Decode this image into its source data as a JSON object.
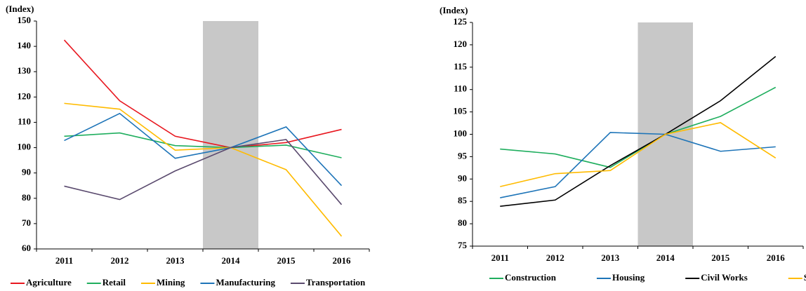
{
  "chart_data": [
    {
      "type": "line",
      "y_label": "(Index)",
      "categories": [
        "2011",
        "2012",
        "2013",
        "2014",
        "2015",
        "2016"
      ],
      "series": [
        {
          "name": "Agriculture",
          "color": "#e8171f",
          "values": [
            142.5,
            118.5,
            104.5,
            100,
            102,
            107.2
          ]
        },
        {
          "name": "Retail",
          "color": "#1fae5e",
          "values": [
            104.5,
            105.8,
            100.8,
            100,
            101,
            96
          ]
        },
        {
          "name": "Mining",
          "color": "#ffbb00",
          "values": [
            117.5,
            115.2,
            99,
            100,
            91.3,
            65
          ]
        },
        {
          "name": "Manufacturing",
          "color": "#1d74b8",
          "values": [
            102.8,
            113.5,
            95.8,
            100,
            108.2,
            85
          ]
        },
        {
          "name": "Transportation",
          "color": "#5a4a6e",
          "values": [
            84.8,
            79.5,
            90.8,
            100,
            103.2,
            77.5
          ]
        }
      ],
      "ylim": [
        60,
        150
      ],
      "yticks": [
        60,
        70,
        80,
        90,
        100,
        110,
        120,
        130,
        140,
        150
      ],
      "shade": {
        "category": "2014",
        "color": "#c8c8c8"
      }
    },
    {
      "type": "line",
      "y_label": "(Index)",
      "categories": [
        "2011",
        "2012",
        "2013",
        "2014",
        "2015",
        "2016"
      ],
      "series": [
        {
          "name": "Construction",
          "color": "#1fae5e",
          "values": [
            96.7,
            95.6,
            92.6,
            100,
            104,
            110.5
          ]
        },
        {
          "name": "Housing",
          "color": "#1d74b8",
          "values": [
            85.8,
            88.3,
            100.4,
            100,
            96.2,
            97.2
          ]
        },
        {
          "name": "Civil Works",
          "color": "#000000",
          "values": [
            83.9,
            85.3,
            93,
            100,
            107.5,
            117.4
          ]
        },
        {
          "name": "Services",
          "color": "#ffbb00",
          "values": [
            88.3,
            91.2,
            91.9,
            100,
            102.6,
            94.7
          ]
        }
      ],
      "ylim": [
        75,
        125
      ],
      "yticks": [
        75,
        80,
        85,
        90,
        95,
        100,
        105,
        110,
        115,
        120,
        125
      ],
      "shade": {
        "category": "2014",
        "color": "#c8c8c8"
      }
    }
  ]
}
